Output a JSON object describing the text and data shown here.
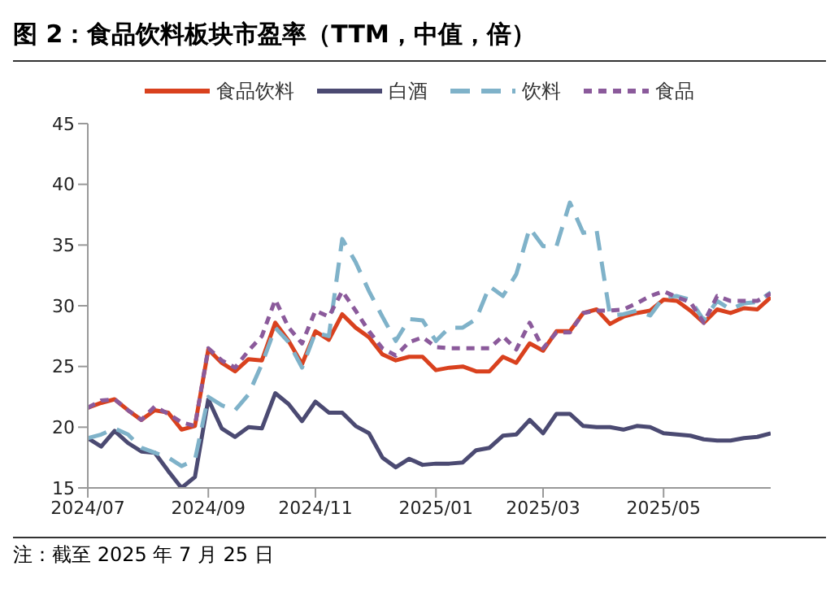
{
  "chart_data": {
    "type": "line",
    "title": "图 2：食品饮料板块市盈率（TTM，中值，倍）",
    "categories": [
      "2024/07",
      null,
      null,
      null,
      null,
      null,
      null,
      null,
      null,
      "2024/09",
      null,
      null,
      null,
      null,
      null,
      null,
      null,
      "2024/11",
      null,
      null,
      null,
      null,
      null,
      null,
      null,
      null,
      "2025/01",
      null,
      null,
      null,
      null,
      null,
      null,
      null,
      "2025/03",
      null,
      null,
      null,
      null,
      null,
      null,
      null,
      null,
      "2025/05",
      null,
      null,
      null,
      null,
      null,
      null,
      null,
      null
    ],
    "series": [
      {
        "name": "食品饮料",
        "color": "#d9411e",
        "line_style": "solid",
        "values": [
          21.6,
          22.0,
          22.3,
          21.4,
          20.6,
          21.4,
          21.2,
          19.8,
          20.1,
          26.4,
          25.3,
          24.6,
          25.6,
          25.5,
          28.6,
          27.1,
          25.2,
          27.9,
          27.2,
          29.3,
          28.2,
          27.4,
          26.0,
          25.5,
          25.8,
          25.8,
          24.7,
          24.9,
          25.0,
          24.6,
          24.6,
          25.8,
          25.3,
          26.9,
          26.3,
          27.9,
          27.9,
          29.4,
          29.7,
          28.5,
          29.1,
          29.4,
          29.6,
          30.5,
          30.4,
          29.6,
          28.6,
          29.7,
          29.4,
          29.8,
          29.7,
          30.7
        ]
      },
      {
        "name": "白酒",
        "color": "#4b4a72",
        "line_style": "solid",
        "values": [
          19.1,
          18.4,
          19.7,
          18.7,
          18.0,
          17.9,
          16.4,
          15.0,
          15.9,
          22.3,
          19.9,
          19.2,
          20.0,
          19.9,
          22.8,
          21.9,
          20.5,
          22.1,
          21.2,
          21.2,
          20.1,
          19.5,
          17.5,
          16.7,
          17.4,
          16.9,
          17.0,
          17.0,
          17.1,
          18.1,
          18.3,
          19.3,
          19.4,
          20.6,
          19.5,
          21.1,
          21.1,
          20.1,
          20.0,
          20.0,
          19.8,
          20.1,
          20.0,
          19.5,
          19.4,
          19.3,
          19.0,
          18.9,
          18.9,
          19.1,
          19.2,
          19.5
        ]
      },
      {
        "name": "饮料",
        "color": "#7fb2c9",
        "line_style": "dashed",
        "values": [
          19.1,
          19.4,
          19.9,
          19.4,
          18.3,
          17.9,
          17.5,
          16.8,
          17.3,
          22.5,
          21.8,
          21.4,
          22.7,
          25.2,
          28.2,
          27.0,
          24.9,
          27.8,
          27.5,
          35.5,
          33.6,
          31.2,
          29.1,
          27.1,
          28.9,
          28.8,
          27.1,
          28.2,
          28.2,
          28.9,
          31.6,
          30.8,
          32.6,
          36.4,
          34.9,
          34.9,
          38.5,
          36.0,
          36.2,
          29.2,
          29.3,
          29.6,
          29.2,
          30.7,
          30.8,
          30.5,
          28.8,
          30.4,
          29.7,
          30.2,
          30.3,
          31.1
        ]
      },
      {
        "name": "食品",
        "color": "#8b5a9b",
        "line_style": "dotted",
        "values": [
          21.6,
          22.2,
          22.3,
          21.4,
          20.6,
          21.7,
          21.1,
          20.4,
          20.1,
          26.5,
          25.5,
          24.9,
          26.3,
          27.5,
          30.5,
          28.2,
          26.9,
          29.6,
          29.1,
          31.2,
          29.6,
          27.9,
          26.5,
          25.9,
          27.0,
          27.4,
          26.6,
          26.5,
          26.5,
          26.5,
          26.5,
          27.5,
          26.4,
          28.6,
          26.5,
          27.8,
          27.8,
          29.4,
          29.6,
          29.6,
          29.7,
          30.2,
          30.8,
          31.2,
          30.7,
          30.3,
          28.6,
          30.8,
          30.4,
          30.4,
          30.4,
          31.0
        ]
      }
    ],
    "ylim": [
      15,
      45
    ],
    "yticks": [
      15,
      20,
      25,
      30,
      35,
      40,
      45
    ],
    "grid": false,
    "legend": "top",
    "marker": "none",
    "annotations": [
      "注：截至 2025 年 7 月 25 日"
    ]
  }
}
